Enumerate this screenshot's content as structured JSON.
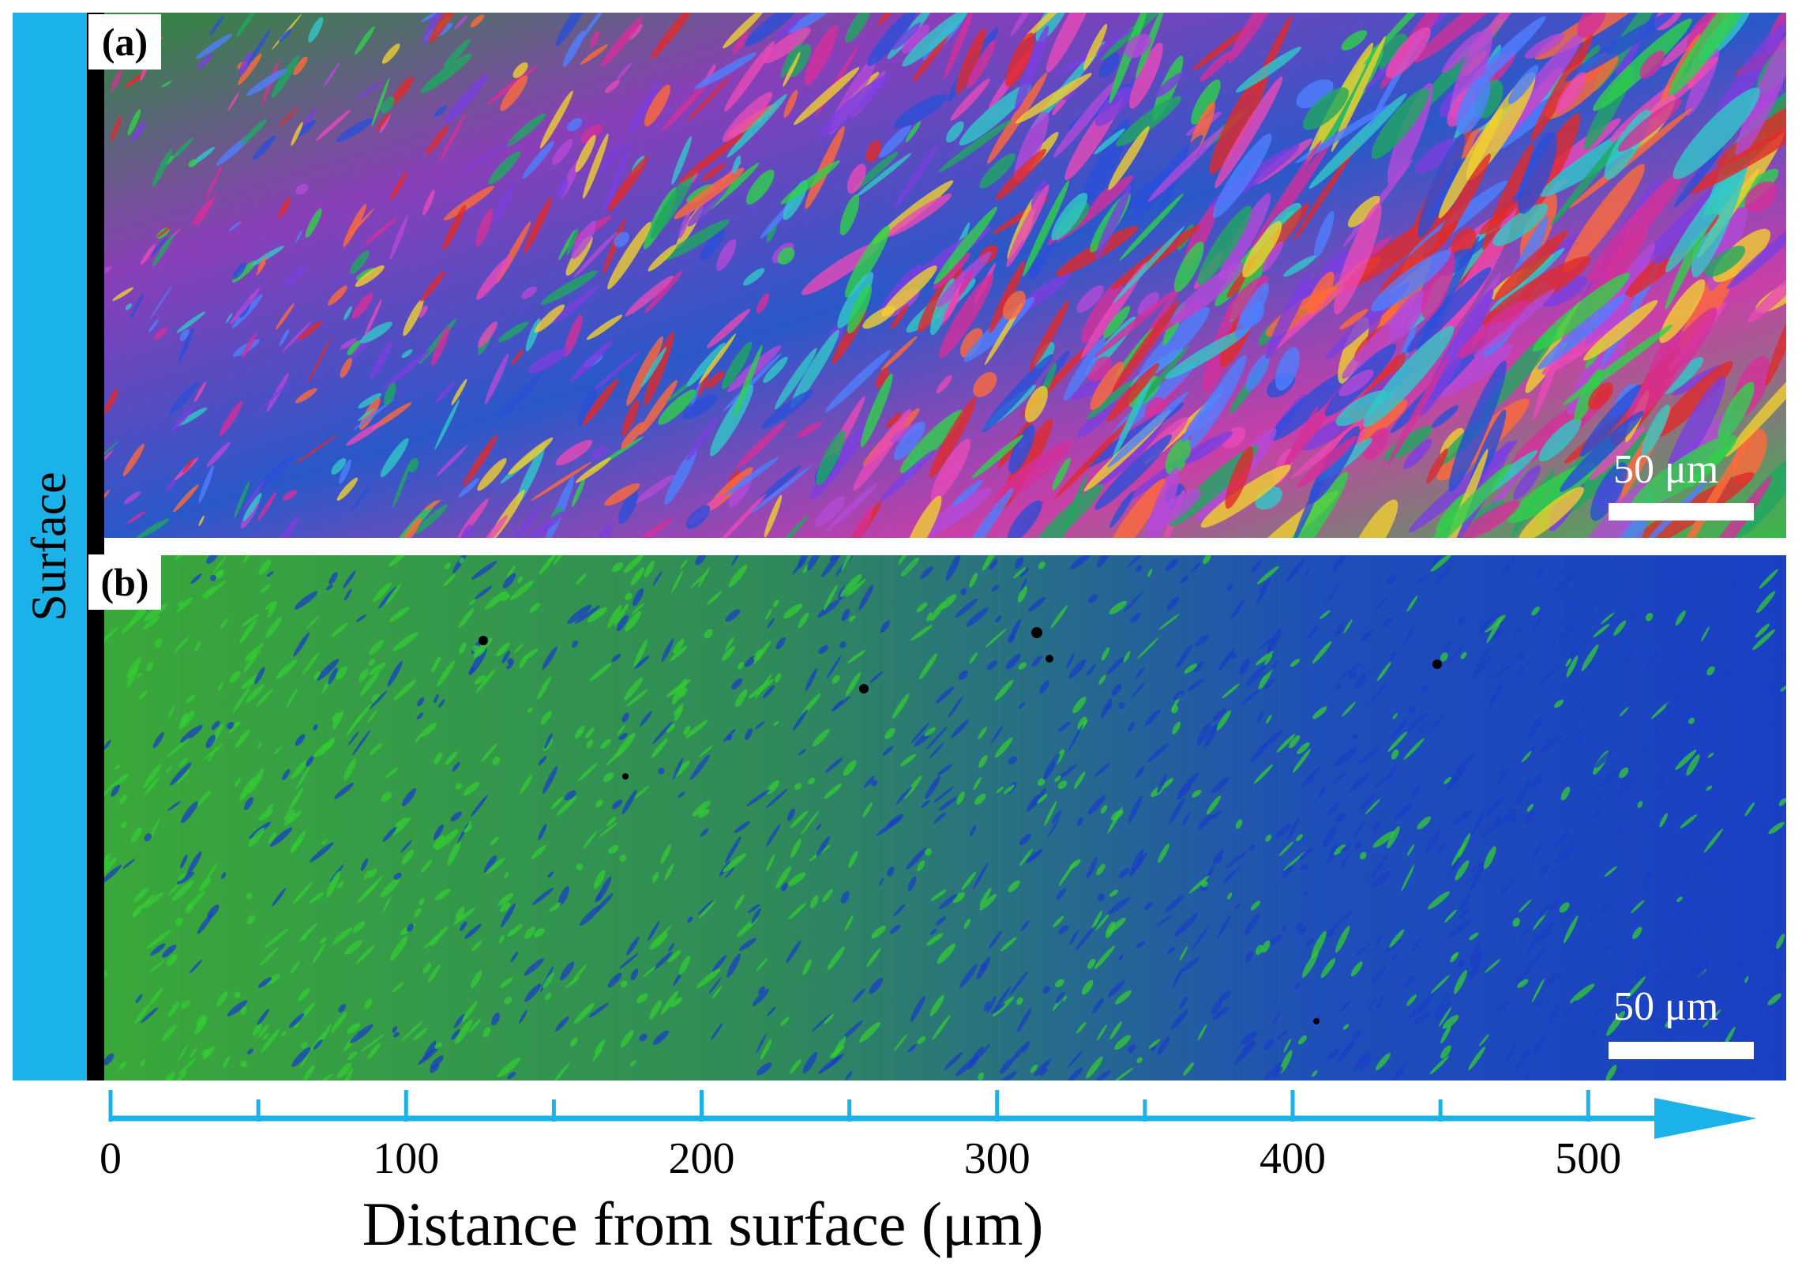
{
  "figure": {
    "surface_label": "Surface",
    "panel_a": {
      "label": "(a)",
      "scale_bar_text": "50 μm",
      "scale_bar_value_um": 50
    },
    "panel_b": {
      "label": "(b)",
      "scale_bar_text": "50 μm",
      "scale_bar_value_um": 50
    },
    "axis": {
      "title": "Distance from surface (μm)",
      "unit": "μm",
      "range": [
        0,
        540
      ],
      "major_ticks": [
        0,
        100,
        200,
        300,
        400,
        500
      ],
      "minor_ticks": [
        50,
        150,
        250,
        350,
        450
      ],
      "tick_labels": [
        "0",
        "100",
        "200",
        "300",
        "400",
        "500"
      ]
    }
  },
  "colors": {
    "accent": "#1ab2e9",
    "surface_edge": "#000000",
    "phase_map_green": "#33cc33",
    "phase_map_blue": "#1a3fc4",
    "scale_bar": "#ffffff"
  }
}
